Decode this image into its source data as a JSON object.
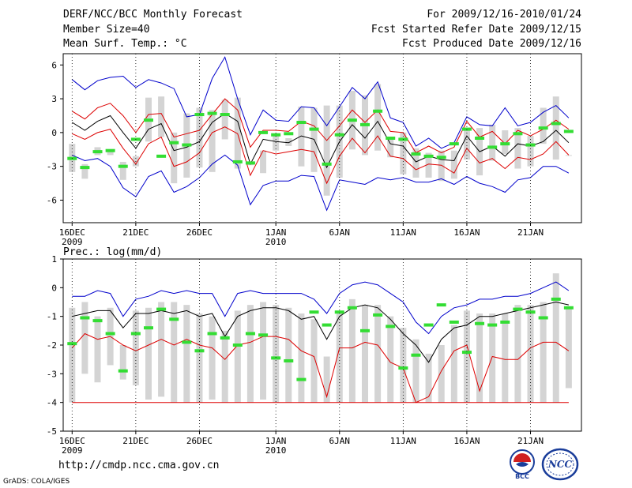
{
  "header": {
    "line1_left": "DERF/NCC/BCC Monthly Forecast",
    "line2_left": "Member Size=40",
    "line3_left": "Mean Surf. Temp.: °C",
    "line1_right": "For 2009/12/16-2010/01/24",
    "line2_right": "Fcst Started Refer Date 2009/12/15",
    "line3_right": "Fcst Produced Date 2009/12/16"
  },
  "footer": {
    "url": "http://cmdp.ncc.cma.gov.cn",
    "credit": "GrADS: COLA/IGES",
    "logo_left_text": "BCC",
    "logo_right_text": "NCC"
  },
  "colors": {
    "max_line": "#0000cc",
    "plus_sd_line": "#dd0000",
    "mean_line": "#000000",
    "box": "#d4d4d4",
    "observed": "#33dd33"
  },
  "chart_data": [
    {
      "type": "box",
      "title": "Mean Surf. Temp.: °C",
      "ylim": [
        -8,
        7
      ],
      "yticks": [
        -6,
        -3,
        0,
        3,
        6
      ],
      "x_tick_labels": [
        {
          "index": 0,
          "label": "16DEC",
          "sublabel": "2009"
        },
        {
          "index": 5,
          "label": "21DEC"
        },
        {
          "index": 10,
          "label": "26DEC"
        },
        {
          "index": 16,
          "label": "1JAN",
          "sublabel": "2010"
        },
        {
          "index": 21,
          "label": "6JAN"
        },
        {
          "index": 26,
          "label": "11JAN"
        },
        {
          "index": 31,
          "label": "16JAN"
        },
        {
          "index": 36,
          "label": "21JAN"
        }
      ],
      "days": 40,
      "series": [
        {
          "name": "max",
          "values": [
            4.7,
            3.8,
            4.6,
            4.9,
            5.0,
            4.0,
            4.7,
            4.4,
            3.9,
            1.4,
            1.6,
            4.8,
            6.7,
            3.0,
            -0.2,
            2.0,
            1.1,
            1.0,
            2.3,
            2.2,
            0.6,
            2.3,
            4.0,
            3.0,
            4.5,
            1.3,
            0.9,
            -1.2,
            -0.5,
            -1.4,
            -0.9,
            1.4,
            0.7,
            0.6,
            2.2,
            0.6,
            0.9,
            1.8,
            2.4,
            1.3
          ]
        },
        {
          "name": "plus_sd",
          "values": [
            1.9,
            1.2,
            2.2,
            2.6,
            1.5,
            0.0,
            1.6,
            1.7,
            -0.4,
            -0.1,
            0.2,
            1.6,
            3.0,
            2.0,
            -1.3,
            0.2,
            0.2,
            0.1,
            1.0,
            0.6,
            -0.7,
            0.6,
            2.0,
            0.9,
            2.0,
            0.1,
            0.0,
            -1.8,
            -1.2,
            -1.8,
            -1.3,
            1.0,
            -0.4,
            0.1,
            -1.0,
            0.2,
            -0.3,
            0.3,
            1.1,
            0.3
          ]
        },
        {
          "name": "mean",
          "values": [
            0.9,
            0.2,
            1.0,
            1.5,
            0.0,
            -1.4,
            0.3,
            0.8,
            -1.6,
            -1.3,
            -0.8,
            0.9,
            1.7,
            1.0,
            -2.8,
            -0.6,
            -0.8,
            -0.9,
            -0.3,
            -0.6,
            -3.1,
            -0.8,
            0.7,
            -0.5,
            1.0,
            -1.0,
            -1.2,
            -2.6,
            -2.1,
            -2.4,
            -2.5,
            -0.3,
            -1.7,
            -1.2,
            -2.1,
            -1.0,
            -1.2,
            -0.8,
            0.2,
            -0.9
          ]
        },
        {
          "name": "mean_minus",
          "values": [
            -0.1,
            -0.6,
            0.0,
            0.3,
            -1.4,
            -2.8,
            -1.0,
            -0.4,
            -3.0,
            -2.6,
            -1.8,
            0.0,
            0.5,
            -0.1,
            -3.8,
            -1.6,
            -1.9,
            -1.7,
            -1.5,
            -1.7,
            -4.5,
            -2.1,
            -0.5,
            -1.8,
            -0.3,
            -2.1,
            -2.3,
            -3.3,
            -2.8,
            -2.9,
            -3.6,
            -1.4,
            -2.7,
            -2.3,
            -3.2,
            -2.2,
            -2.4,
            -1.9,
            -0.8,
            -2.0
          ]
        },
        {
          "name": "min",
          "values": [
            -2.0,
            -2.5,
            -2.3,
            -3.0,
            -4.9,
            -5.7,
            -3.9,
            -3.4,
            -5.3,
            -4.8,
            -4.0,
            -2.8,
            -2.0,
            -2.9,
            -6.4,
            -4.7,
            -4.3,
            -4.3,
            -3.8,
            -3.9,
            -6.9,
            -4.2,
            -4.4,
            -4.6,
            -4.0,
            -4.2,
            -4.0,
            -4.4,
            -4.4,
            -4.1,
            -4.6,
            -3.9,
            -4.5,
            -4.8,
            -5.3,
            -4.2,
            -4.0,
            -3.0,
            -3.0,
            -3.6
          ]
        },
        {
          "name": "box_top",
          "values": [
            -1.0,
            -2.8,
            -1.3,
            -1.5,
            -2.6,
            -2.1,
            3.1,
            3.2,
            0.0,
            1.7,
            2.2,
            2.0,
            2.9,
            3.1,
            -2.8,
            -1.6,
            -0.2,
            -0.5,
            2.3,
            2.2,
            2.4,
            2.4,
            3.7,
            3.3,
            4.3,
            -0.6,
            0.0,
            -1.4,
            -1.8,
            -1.6,
            -1.6,
            0.4,
            0.4,
            0.7,
            0.2,
            0.4,
            -0.3,
            2.2,
            3.2,
            -2.0
          ]
        },
        {
          "name": "box_bottom",
          "values": [
            -3.5,
            -4.1,
            -2.0,
            -2.0,
            -4.2,
            -3.0,
            -0.8,
            -0.4,
            -4.5,
            -4.0,
            -3.1,
            -3.5,
            -0.6,
            -3.2,
            -2.9,
            -3.6,
            -1.6,
            -1.2,
            -3.0,
            -3.5,
            -5.6,
            -4.0,
            -1.5,
            -2.0,
            -1.6,
            -2.2,
            -3.7,
            -4.0,
            -4.0,
            -4.3,
            -4.1,
            -2.4,
            -3.8,
            -2.5,
            -1.9,
            -3.2,
            -3.0,
            -1.0,
            -2.4,
            -2.0
          ]
        },
        {
          "name": "observed",
          "values": [
            -2.3,
            -3.1,
            -1.7,
            -1.6,
            -3.0,
            -0.6,
            1.1,
            -2.1,
            -0.9,
            -1.1,
            1.6,
            1.7,
            1.6,
            -2.6,
            -2.7,
            0.0,
            -0.2,
            -0.1,
            0.9,
            0.3,
            -2.8,
            -0.2,
            1.1,
            0.7,
            1.9,
            -0.5,
            -0.6,
            -1.9,
            -2.1,
            -2.2,
            -1.0,
            0.3,
            -0.5,
            -1.3,
            -1.0,
            -0.1,
            -1.1,
            0.4,
            0.8,
            0.1
          ]
        }
      ]
    },
    {
      "type": "box",
      "title": "Prec.: log(mm/d)",
      "ylim": [
        -5,
        1
      ],
      "yticks": [
        -5,
        -4,
        -3,
        -2,
        -1,
        0,
        1
      ],
      "x_tick_labels": [
        {
          "index": 0,
          "label": "16DEC",
          "sublabel": "2009"
        },
        {
          "index": 5,
          "label": "21DEC"
        },
        {
          "index": 10,
          "label": "26DEC"
        },
        {
          "index": 16,
          "label": "1JAN",
          "sublabel": "2010"
        },
        {
          "index": 21,
          "label": "6JAN"
        },
        {
          "index": 26,
          "label": "11JAN"
        },
        {
          "index": 31,
          "label": "16JAN"
        },
        {
          "index": 36,
          "label": "21JAN"
        }
      ],
      "days": 40,
      "series": [
        {
          "name": "max",
          "values": [
            -0.3,
            -0.3,
            -0.1,
            -0.2,
            -1.0,
            -0.4,
            -0.3,
            -0.1,
            -0.2,
            -0.1,
            -0.2,
            -0.2,
            -1.0,
            -0.2,
            -0.1,
            -0.2,
            -0.2,
            -0.2,
            -0.2,
            -0.4,
            -0.9,
            -0.2,
            0.1,
            0.2,
            0.1,
            -0.2,
            -0.5,
            -1.2,
            -1.6,
            -1.0,
            -0.7,
            -0.6,
            -0.4,
            -0.4,
            -0.3,
            -0.3,
            -0.2,
            0.0,
            0.2,
            -0.1
          ]
        },
        {
          "name": "mean",
          "values": [
            -1.0,
            -0.9,
            -0.8,
            -0.8,
            -1.4,
            -0.9,
            -0.9,
            -0.8,
            -0.9,
            -0.8,
            -1.0,
            -0.9,
            -1.7,
            -1.0,
            -0.8,
            -0.7,
            -0.7,
            -0.8,
            -1.1,
            -1.0,
            -1.8,
            -1.0,
            -0.7,
            -0.6,
            -0.7,
            -1.1,
            -1.6,
            -2.0,
            -2.6,
            -1.8,
            -1.4,
            -1.3,
            -1.0,
            -1.0,
            -0.9,
            -0.8,
            -0.7,
            -0.6,
            -0.5,
            -0.6
          ]
        },
        {
          "name": "plus_sd",
          "values": [
            -2.1,
            -1.6,
            -1.8,
            -1.7,
            -2.0,
            -2.2,
            -2.0,
            -1.8,
            -2.0,
            -1.8,
            -2.0,
            -2.1,
            -2.5,
            -2.0,
            -1.9,
            -1.7,
            -1.7,
            -1.8,
            -2.2,
            -2.4,
            -3.8,
            -2.1,
            -2.1,
            -1.9,
            -2.0,
            -2.6,
            -2.8,
            -4.0,
            -3.8,
            -2.9,
            -2.2,
            -2.0,
            -3.6,
            -2.4,
            -2.5,
            -2.5,
            -2.1,
            -1.9,
            -1.9,
            -2.2
          ]
        },
        {
          "name": "min",
          "values": [
            -4.0,
            -4.0,
            -4.0,
            -4.0,
            -4.0,
            -4.0,
            -4.0,
            -4.0,
            -4.0,
            -4.0,
            -4.0,
            -4.0,
            -4.0,
            -4.0,
            -4.0,
            -4.0,
            -4.0,
            -4.0,
            -4.0,
            -4.0,
            -4.0,
            -4.0,
            -4.0,
            -4.0,
            -4.0,
            -4.0,
            -4.0,
            -4.0,
            -4.0,
            -4.0,
            -4.0,
            -4.0,
            -4.0,
            -4.0,
            -4.0,
            -4.0,
            -4.0,
            -4.0,
            -4.0,
            -4.0
          ]
        },
        {
          "name": "box_top",
          "values": [
            -0.7,
            -0.5,
            -1.0,
            -0.7,
            -2.0,
            -0.8,
            -0.7,
            -0.5,
            -0.5,
            -0.6,
            -0.9,
            -1.0,
            -1.5,
            -0.8,
            -0.6,
            -0.5,
            -0.6,
            -0.7,
            -0.9,
            -1.1,
            -2.4,
            -0.9,
            -0.4,
            -0.6,
            -0.6,
            -1.0,
            -1.4,
            -1.8,
            -2.3,
            -2.0,
            -1.3,
            -0.8,
            -0.9,
            -0.9,
            -0.9,
            -0.6,
            -0.6,
            -0.5,
            0.5,
            -0.7
          ]
        },
        {
          "name": "box_bottom",
          "values": [
            -4.0,
            -3.0,
            -3.3,
            -2.7,
            -3.2,
            -3.4,
            -3.9,
            -3.8,
            -4.0,
            -4.0,
            -4.0,
            -3.9,
            -4.0,
            -4.0,
            -4.0,
            -3.9,
            -4.0,
            -4.0,
            -4.0,
            -4.0,
            -4.0,
            -4.0,
            -4.0,
            -4.0,
            -4.0,
            -4.0,
            -4.0,
            -4.0,
            -4.0,
            -4.0,
            -4.0,
            -4.0,
            -4.0,
            -4.0,
            -4.0,
            -4.0,
            -4.0,
            -4.0,
            -4.0,
            -3.5
          ]
        },
        {
          "name": "observed",
          "values": [
            -1.95,
            -1.05,
            -1.15,
            -1.6,
            -2.9,
            -1.6,
            -1.4,
            -0.75,
            -1.1,
            -1.9,
            -2.2,
            -1.6,
            -1.75,
            -2.0,
            -1.6,
            -1.65,
            -2.45,
            -2.55,
            -3.2,
            -0.85,
            -1.3,
            -0.85,
            -0.7,
            -1.5,
            -0.95,
            -1.35,
            -2.8,
            -2.35,
            -1.3,
            -0.6,
            -1.2,
            -2.25,
            -1.25,
            -1.3,
            -1.2,
            -0.75,
            -0.85,
            -1.05,
            -0.4,
            -0.7
          ]
        }
      ]
    }
  ]
}
